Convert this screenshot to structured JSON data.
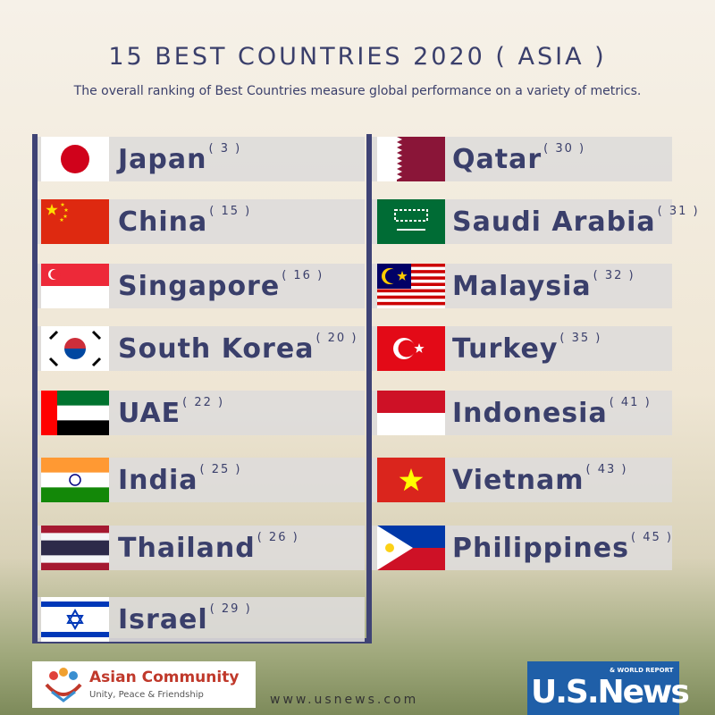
{
  "header": {
    "title": "15 BEST COUNTRIES 2020 ( ASIA )",
    "subtitle": "The overall ranking of Best Countries measure global performance on a variety of metrics."
  },
  "left": [
    {
      "name": "Japan",
      "rank": "( 3 )"
    },
    {
      "name": "China",
      "rank": "( 15 )"
    },
    {
      "name": "Singapore",
      "rank": "( 16 )"
    },
    {
      "name": "South Korea",
      "rank": "( 20 )"
    },
    {
      "name": "UAE",
      "rank": "( 22 )"
    },
    {
      "name": "India",
      "rank": "( 25 )"
    },
    {
      "name": "Thailand",
      "rank": "( 26 )"
    },
    {
      "name": "Israel",
      "rank": "( 29 )"
    }
  ],
  "right": [
    {
      "name": "Qatar",
      "rank": "( 30 )"
    },
    {
      "name": "Saudi Arabia",
      "rank": "( 31 )"
    },
    {
      "name": "Malaysia",
      "rank": "( 32 )"
    },
    {
      "name": "Turkey",
      "rank": "( 35 )"
    },
    {
      "name": "Indonesia",
      "rank": "( 41 )"
    },
    {
      "name": "Vietnam",
      "rank": "( 43 )"
    },
    {
      "name": "Philippines",
      "rank": "( 45 )"
    }
  ],
  "footer": {
    "brand": "Asian Community",
    "tagline": "Unity, Peace & Friendship",
    "website": "www.usnews.com",
    "logo": "U.S.News",
    "logo_sub": "& WORLD REPORT"
  }
}
